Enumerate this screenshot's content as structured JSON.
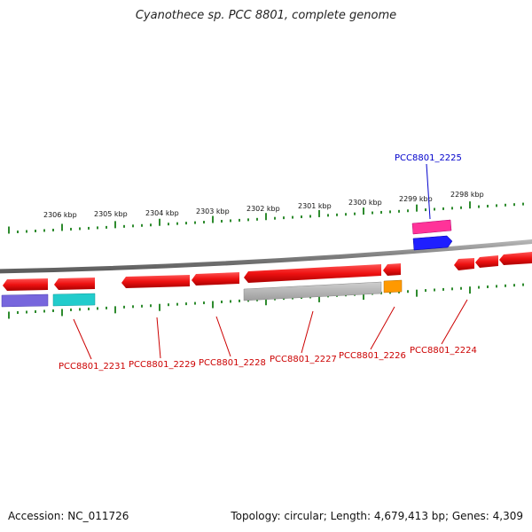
{
  "title": "Cyanothece sp. PCC 8801, complete genome",
  "footer": {
    "accession": "Accession: NC_011726",
    "topology": "Topology: circular; Length: 4,679,413 bp; Genes: 4,309"
  },
  "colors": {
    "backbone": "#8a8a8a",
    "tick": "#2e8b2e",
    "gene_forward": "#ee1111",
    "label_red": "#cc0000",
    "label_blue": "#0000cc"
  },
  "scale_labels": [
    "2306 kbp",
    "2305 kbp",
    "2304 kbp",
    "2303 kbp",
    "2302 kbp",
    "2301 kbp",
    "2300 kbp",
    "2299 kbp",
    "2298 kbp"
  ],
  "gene_labels": [
    {
      "id": "PCC8801_2231",
      "color": "red"
    },
    {
      "id": "PCC8801_2229",
      "color": "red"
    },
    {
      "id": "PCC8801_2228",
      "color": "red"
    },
    {
      "id": "PCC8801_2227",
      "color": "red"
    },
    {
      "id": "PCC8801_2226",
      "color": "red"
    },
    {
      "id": "PCC8801_2224",
      "color": "red"
    },
    {
      "id": "PCC8801_2225",
      "color": "blue"
    }
  ]
}
